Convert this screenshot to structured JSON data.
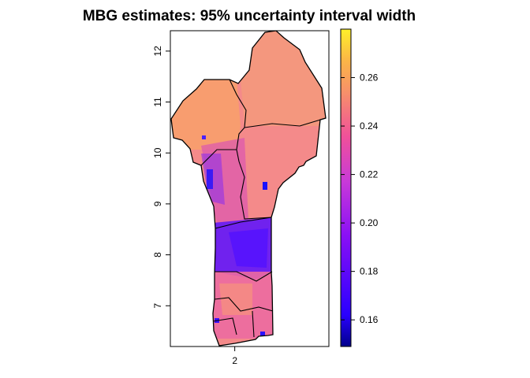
{
  "title": "MBG estimates: 95% uncertainty interval width",
  "map": {
    "region": "Benin",
    "x_ticks": [
      {
        "value": 2,
        "label": "2"
      }
    ],
    "y_ticks": [
      {
        "value": 7,
        "label": "7"
      },
      {
        "value": 8,
        "label": "8"
      },
      {
        "value": 9,
        "label": "9"
      },
      {
        "value": 10,
        "label": "10"
      },
      {
        "value": 11,
        "label": "11"
      },
      {
        "value": 12,
        "label": "12"
      }
    ],
    "x_range": [
      0.7,
      3.9
    ],
    "y_range": [
      6.2,
      12.4
    ]
  },
  "legend": {
    "range": [
      0.149,
      0.28
    ],
    "ticks": [
      {
        "value": 0.16,
        "label": "0.16"
      },
      {
        "value": 0.18,
        "label": "0.18"
      },
      {
        "value": 0.2,
        "label": "0.20"
      },
      {
        "value": 0.22,
        "label": "0.22"
      },
      {
        "value": 0.24,
        "label": "0.24"
      },
      {
        "value": 0.26,
        "label": "0.26"
      }
    ],
    "colors": [
      "#0d0887",
      "#2a00ff",
      "#7a10f0",
      "#b92fd9",
      "#e54fa0",
      "#f67f6a",
      "#fbae45",
      "#fde725"
    ]
  }
}
